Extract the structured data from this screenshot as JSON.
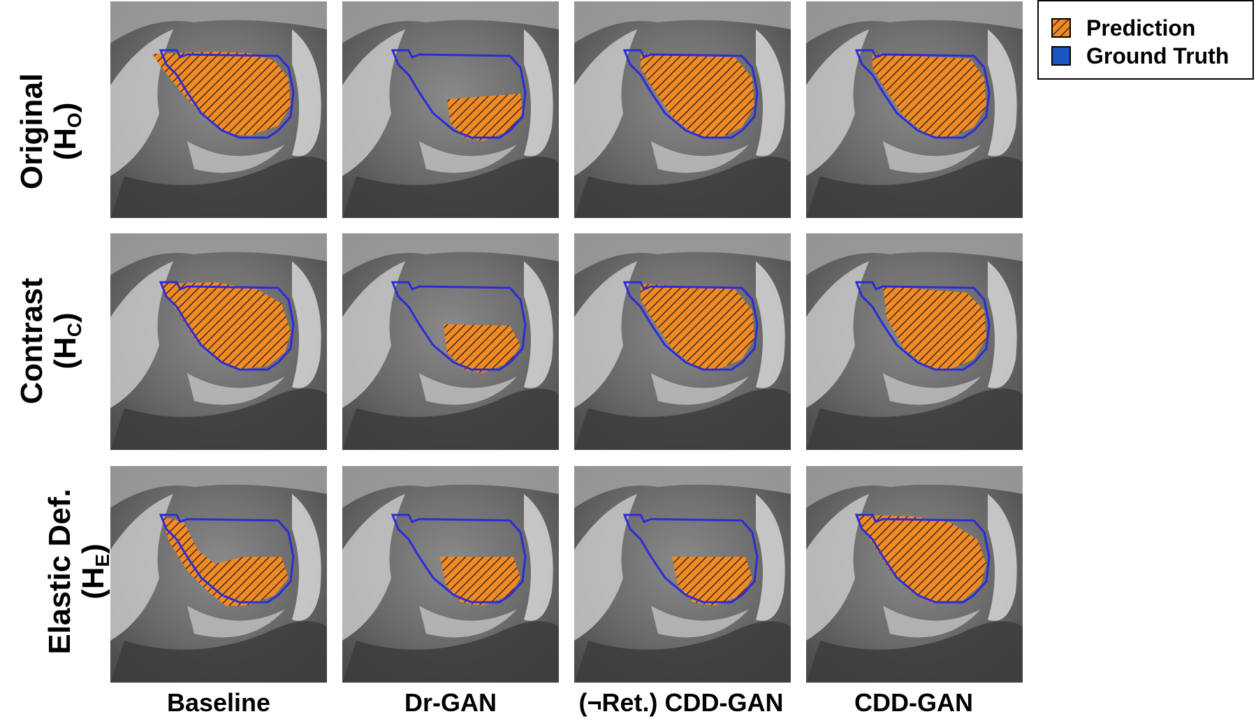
{
  "rows": [
    {
      "label": "Original",
      "sym": "H",
      "sub": "O"
    },
    {
      "label": "Contrast",
      "sym": "H",
      "sub": "C"
    },
    {
      "label": "Elastic Def.",
      "sym": "H",
      "sub": "E"
    }
  ],
  "columns": [
    "Baseline",
    "Dr-GAN",
    "(¬Ret.) CDD-GAN",
    "CDD-GAN"
  ],
  "legend": {
    "prediction": "Prediction",
    "ground_truth": "Ground Truth"
  },
  "colors": {
    "prediction": "#f08a24",
    "hatch": "#333333",
    "ground_truth": "#2b2bd9",
    "legend_gt": "#1a56c4"
  }
}
